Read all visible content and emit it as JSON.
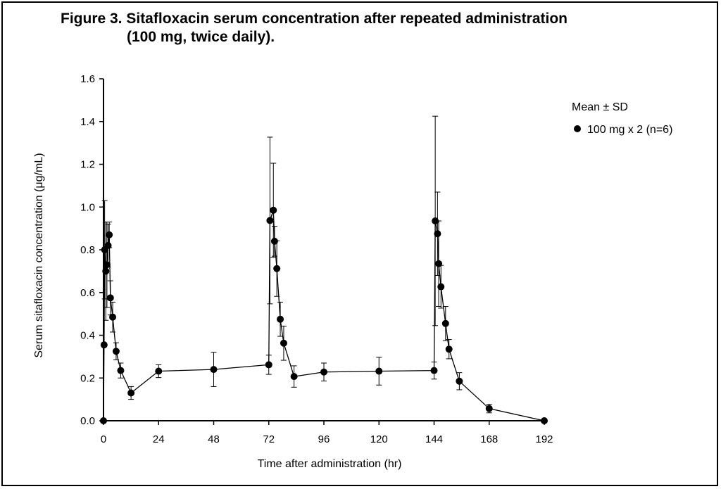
{
  "figure": {
    "title_line1": "Figure 3. Sitafloxacin serum concentration after repeated administration",
    "title_line2": "(100 mg, twice daily)."
  },
  "chart_data": {
    "type": "line",
    "xlabel": "Time after administration (hr)",
    "ylabel": "Serum sitafloxacin concentration (μg/mL)",
    "xlim": [
      0,
      192
    ],
    "ylim": [
      0,
      1.6
    ],
    "xticks": [
      0,
      24,
      48,
      72,
      96,
      120,
      144,
      168,
      192
    ],
    "xtick_labels": [
      "0",
      "24",
      "48",
      "72",
      "96",
      "120",
      "144",
      "168",
      "192"
    ],
    "yticks": [
      0,
      0.2,
      0.4,
      0.6,
      0.8,
      1.0,
      1.2,
      1.4,
      1.6
    ],
    "ytick_labels": [
      "0.0",
      "0.2",
      "0.4",
      "0.6",
      "0.8",
      "1.0",
      "1.2",
      "1.4",
      "1.6"
    ],
    "legend_title": "Mean ±  SD",
    "legend_position": "right",
    "series": [
      {
        "name": "100 mg x 2 (n=6)",
        "color": "#000000",
        "marker": "circle",
        "points": [
          {
            "x": 0,
            "y": 0.0,
            "sd": 0.0
          },
          {
            "x": 0.25,
            "y": 0.355,
            "sd": 0.0
          },
          {
            "x": 0.5,
            "y": 0.8,
            "sd": 0.23
          },
          {
            "x": 1,
            "y": 0.7,
            "sd": 0.23
          },
          {
            "x": 1.5,
            "y": 0.73,
            "sd": 0.2
          },
          {
            "x": 2,
            "y": 0.82,
            "sd": 0.1
          },
          {
            "x": 2.5,
            "y": 0.87,
            "sd": 0.06
          },
          {
            "x": 3,
            "y": 0.575,
            "sd": 0.08
          },
          {
            "x": 4,
            "y": 0.485,
            "sd": 0.07
          },
          {
            "x": 5.5,
            "y": 0.325,
            "sd": 0.04
          },
          {
            "x": 7.5,
            "y": 0.235,
            "sd": 0.035
          },
          {
            "x": 12,
            "y": 0.13,
            "sd": 0.03
          },
          {
            "x": 24,
            "y": 0.232,
            "sd": 0.03
          },
          {
            "x": 48,
            "y": 0.24,
            "sd": 0.08
          },
          {
            "x": 72,
            "y": 0.262,
            "sd": 0.045
          },
          {
            "x": 72.5,
            "y": 0.937,
            "sd": 0.39
          },
          {
            "x": 74,
            "y": 0.985,
            "sd": 0.22
          },
          {
            "x": 74.5,
            "y": 0.84,
            "sd": 0.07
          },
          {
            "x": 75.5,
            "y": 0.712,
            "sd": 0.13
          },
          {
            "x": 77,
            "y": 0.475,
            "sd": 0.08
          },
          {
            "x": 78.5,
            "y": 0.363,
            "sd": 0.08
          },
          {
            "x": 83,
            "y": 0.207,
            "sd": 0.05
          },
          {
            "x": 96,
            "y": 0.228,
            "sd": 0.042
          },
          {
            "x": 120,
            "y": 0.232,
            "sd": 0.065
          },
          {
            "x": 144,
            "y": 0.235,
            "sd": 0.04
          },
          {
            "x": 144.5,
            "y": 0.935,
            "sd": 0.49
          },
          {
            "x": 145.5,
            "y": 0.875,
            "sd": 0.195
          },
          {
            "x": 146,
            "y": 0.735,
            "sd": 0.2
          },
          {
            "x": 147,
            "y": 0.627,
            "sd": 0.1
          },
          {
            "x": 149,
            "y": 0.455,
            "sd": 0.08
          },
          {
            "x": 150.5,
            "y": 0.335,
            "sd": 0.045
          },
          {
            "x": 155,
            "y": 0.185,
            "sd": 0.04
          },
          {
            "x": 168,
            "y": 0.057,
            "sd": 0.02
          },
          {
            "x": 192,
            "y": 0.0,
            "sd": 0.0
          }
        ]
      }
    ]
  }
}
